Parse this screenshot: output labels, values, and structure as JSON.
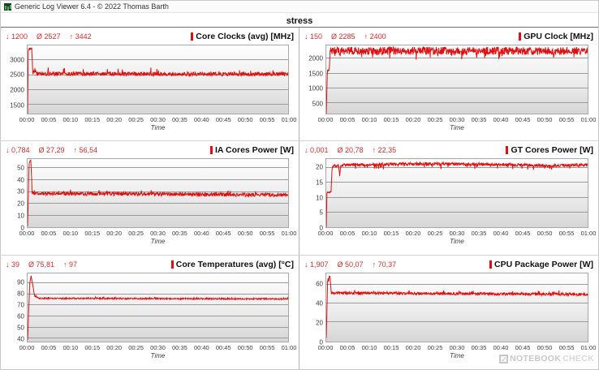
{
  "window": {
    "title": "Generic Log Viewer 6.4 - © 2022 Thomas Barth",
    "app_icon": "chart-icon"
  },
  "view": {
    "title": "stress"
  },
  "colors": {
    "series_red": "#e01010",
    "stats_red": "#cc2f2f",
    "grid_line": "#9b9b9b",
    "title_text": "#111111"
  },
  "watermark": {
    "logo": "check-icon",
    "logo_glyph": "✓",
    "text_bold": "NOTEBOOK",
    "text_light": "CHECK"
  },
  "panels": [
    {
      "min": "↓ 1200",
      "avg": "Ø 2527",
      "max": "↑ 3442",
      "title": "Core Clocks (avg) [MHz]"
    },
    {
      "min": "↓ 150",
      "avg": "Ø 2285",
      "max": "↑ 2400",
      "title": "GPU Clock [MHz]"
    },
    {
      "min": "↓ 0,784",
      "avg": "Ø 27,29",
      "max": "↑ 56,54",
      "title": "IA Cores Power [W]"
    },
    {
      "min": "↓ 0,001",
      "avg": "Ø 20,78",
      "max": "↑ 22,35",
      "title": "GT Cores Power [W]"
    },
    {
      "min": "↓ 39",
      "avg": "Ø 75,81",
      "max": "↑ 97",
      "title": "Core Temperatures (avg) [°C]"
    },
    {
      "min": "↓ 1,907",
      "avg": "Ø 50,07",
      "max": "↑ 70,37",
      "title": "CPU Package Power [W]"
    }
  ],
  "chart_data": [
    {
      "type": "line",
      "title": "Core Clocks (avg) [MHz]",
      "color": "#e01010",
      "stats": {
        "min": 1200,
        "avg": 2527,
        "max": 3442
      },
      "x_range_minutes": [
        0,
        60
      ],
      "xticks": [
        "00:00",
        "00:05",
        "00:10",
        "00:15",
        "00:20",
        "00:25",
        "00:30",
        "00:35",
        "00:40",
        "00:45",
        "00:50",
        "00:55",
        "01:00"
      ],
      "xlabel": "Time",
      "ylim": [
        1200,
        3500
      ],
      "yticks": [
        1500,
        2000,
        2500,
        3000
      ],
      "keypoints": [
        [
          0,
          1200,
          0
        ],
        [
          0.15,
          3380,
          40
        ],
        [
          0.95,
          3400,
          40
        ],
        [
          1.2,
          2580,
          70
        ],
        [
          1.6,
          2680,
          80
        ],
        [
          2.2,
          2545,
          65
        ],
        [
          60,
          2535,
          65
        ]
      ],
      "noise_spikes": {
        "p": 0.03,
        "v": 170
      }
    },
    {
      "type": "line",
      "title": "GPU Clock [MHz]",
      "color": "#e01010",
      "stats": {
        "min": 150,
        "avg": 2285,
        "max": 2400
      },
      "x_range_minutes": [
        0,
        60
      ],
      "xticks": [
        "00:00",
        "00:05",
        "00:10",
        "00:15",
        "00:20",
        "00:25",
        "00:30",
        "00:35",
        "00:40",
        "00:45",
        "00:50",
        "00:55",
        "01:00"
      ],
      "xlabel": "Time",
      "ylim": [
        150,
        2450
      ],
      "yticks": [
        500,
        1000,
        1500,
        2000
      ],
      "keypoints": [
        [
          0,
          150,
          0
        ],
        [
          0.25,
          1600,
          20
        ],
        [
          0.7,
          1620,
          20
        ],
        [
          0.9,
          2330,
          60
        ],
        [
          1.2,
          2270,
          130
        ],
        [
          60,
          2265,
          130
        ]
      ],
      "noise_spikes": {
        "p": 0.05,
        "v": -230
      }
    },
    {
      "type": "line",
      "title": "IA Cores Power [W]",
      "color": "#e01010",
      "stats": {
        "min": 0.784,
        "avg": 27.29,
        "max": 56.54
      },
      "x_range_minutes": [
        0,
        60
      ],
      "xticks": [
        "00:00",
        "00:05",
        "00:10",
        "00:15",
        "00:20",
        "00:25",
        "00:30",
        "00:35",
        "00:40",
        "00:45",
        "00:50",
        "00:55",
        "01:00"
      ],
      "xlabel": "Time",
      "ylim": [
        0,
        57.5
      ],
      "yticks": [
        0,
        10,
        20,
        30,
        40,
        50
      ],
      "keypoints": [
        [
          0,
          0.784,
          0
        ],
        [
          0.35,
          54,
          2
        ],
        [
          0.75,
          56.2,
          0.5
        ],
        [
          1.05,
          28.5,
          1.5
        ],
        [
          60,
          27.2,
          1.6
        ]
      ],
      "noise_spikes": {
        "p": 0.04,
        "v": 2.6
      }
    },
    {
      "type": "line",
      "title": "GT Cores Power [W]",
      "color": "#e01010",
      "stats": {
        "min": 0.001,
        "avg": 20.78,
        "max": 22.35
      },
      "x_range_minutes": [
        0,
        60
      ],
      "xticks": [
        "00:00",
        "00:05",
        "00:10",
        "00:15",
        "00:20",
        "00:25",
        "00:30",
        "00:35",
        "00:40",
        "00:45",
        "00:50",
        "00:55",
        "01:00"
      ],
      "xlabel": "Time",
      "ylim": [
        0,
        22.8
      ],
      "yticks": [
        0,
        5,
        10,
        15,
        20
      ],
      "keypoints": [
        [
          0,
          0.001,
          0
        ],
        [
          0.15,
          11.5,
          0.2
        ],
        [
          1.1,
          11.8,
          0.2
        ],
        [
          1.35,
          20.3,
          0.5
        ],
        [
          2.8,
          20.8,
          0.5
        ],
        [
          3.05,
          17.6,
          0.5
        ],
        [
          3.35,
          20.8,
          0.5
        ],
        [
          20,
          21.2,
          0.5
        ],
        [
          40,
          21.0,
          0.5
        ],
        [
          52,
          20.6,
          0.45
        ],
        [
          60,
          20.9,
          0.5
        ]
      ],
      "noise_spikes": {
        "p": 0.05,
        "v": -1.3
      }
    },
    {
      "type": "line",
      "title": "Core Temperatures (avg) [°C]",
      "color": "#e01010",
      "stats": {
        "min": 39,
        "avg": 75.81,
        "max": 97
      },
      "x_range_minutes": [
        0,
        60
      ],
      "xticks": [
        "00:00",
        "00:05",
        "00:10",
        "00:15",
        "00:20",
        "00:25",
        "00:30",
        "00:35",
        "00:40",
        "00:45",
        "00:50",
        "00:55",
        "01:00"
      ],
      "xlabel": "Time",
      "ylim": [
        37.5,
        99
      ],
      "yticks": [
        40,
        50,
        60,
        70,
        80,
        90
      ],
      "keypoints": [
        [
          0,
          39,
          0
        ],
        [
          0.5,
          90,
          2
        ],
        [
          0.8,
          97,
          0
        ],
        [
          1.6,
          79,
          0.5
        ],
        [
          2.6,
          76.5,
          0.6
        ],
        [
          60,
          76,
          0.6
        ]
      ],
      "noise_spikes": {
        "p": 0.03,
        "v": 1.6
      }
    },
    {
      "type": "line",
      "title": "CPU Package Power [W]",
      "color": "#e01010",
      "stats": {
        "min": 1.907,
        "avg": 50.07,
        "max": 70.37
      },
      "x_range_minutes": [
        0,
        60
      ],
      "xticks": [
        "00:00",
        "00:05",
        "00:10",
        "00:15",
        "00:20",
        "00:25",
        "00:30",
        "00:35",
        "00:40",
        "00:45",
        "00:50",
        "00:55",
        "01:00"
      ],
      "xlabel": "Time",
      "ylim": [
        0,
        72
      ],
      "yticks": [
        0,
        20,
        40,
        60
      ],
      "keypoints": [
        [
          0,
          1.907,
          0
        ],
        [
          0.3,
          64,
          3
        ],
        [
          0.85,
          68.5,
          1.5
        ],
        [
          1.15,
          51.5,
          1.3
        ],
        [
          60,
          49.8,
          1.5
        ]
      ],
      "noise_spikes": {
        "p": 0.03,
        "v": 3
      }
    }
  ]
}
